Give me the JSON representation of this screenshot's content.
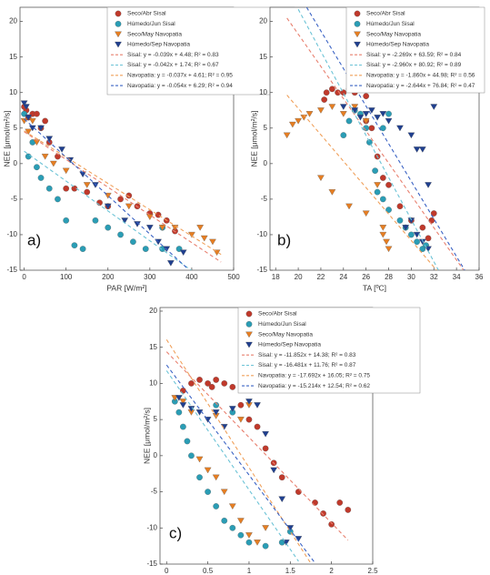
{
  "chart_data": [
    {
      "type": "scatter",
      "label": "a)",
      "xlabel": "PAR [W/m²]",
      "ylabel": "NEE [μmol/m²/s]",
      "xlim": [
        -10,
        500
      ],
      "ylim": [
        -15,
        22
      ],
      "xticks": [
        0,
        100,
        200,
        300,
        400,
        500
      ],
      "yticks": [
        -15,
        -10,
        -5,
        0,
        5,
        10,
        15,
        20
      ],
      "series": [
        {
          "name": "Seco/Abr Sisal",
          "color": "#c0392b",
          "marker": "o",
          "x": [
            0,
            5,
            10,
            20,
            30,
            40,
            50,
            60,
            80,
            100,
            120,
            150,
            180,
            200,
            230,
            250,
            270,
            300,
            320,
            340,
            360
          ],
          "y": [
            8,
            7.5,
            6.5,
            7,
            7,
            5,
            6,
            3,
            1,
            -3.5,
            -3.5,
            -4,
            -5.5,
            -6,
            -5,
            -4.5,
            -6,
            -7,
            -7.2,
            -8,
            -9.5
          ]
        },
        {
          "name": "Húmedo/Jun Sisal",
          "color": "#2a9db5",
          "marker": "o",
          "x": [
            0,
            10,
            20,
            30,
            40,
            60,
            80,
            100,
            120,
            140,
            170,
            200,
            230,
            260,
            290,
            330,
            370,
            330
          ],
          "y": [
            7,
            1,
            3,
            -0.5,
            -2,
            -3.5,
            -5,
            -8,
            -11.5,
            -12,
            -8,
            -9,
            -10,
            -11,
            -12,
            -12,
            -12,
            -9
          ]
        },
        {
          "name": "Seco/May Navopatia",
          "color": "#e67e22",
          "marker": "v",
          "x": [
            0,
            10,
            20,
            30,
            50,
            70,
            100,
            150,
            200,
            250,
            300,
            330,
            360,
            400,
            430,
            450,
            460,
            420
          ],
          "y": [
            6,
            4.5,
            6,
            3,
            1,
            0,
            -1,
            -3,
            -4.5,
            -6,
            -7.5,
            -9,
            -9,
            -10,
            -10.5,
            -11,
            -12.5,
            -9
          ]
        },
        {
          "name": "Húmedo/Sep Navopatia",
          "color": "#1f3f8f",
          "marker": "v",
          "x": [
            0,
            5,
            10,
            20,
            40,
            60,
            90,
            110,
            140,
            170,
            200,
            240,
            270,
            300,
            320,
            340,
            350,
            380
          ],
          "y": [
            8.5,
            8,
            6.5,
            5,
            5,
            3.5,
            2,
            0.5,
            -1.5,
            -3,
            -6,
            -8,
            -8.5,
            -9,
            -11,
            -12,
            -14,
            -12.5
          ]
        }
      ],
      "trendlines": [
        {
          "name": "Sisal: y = -0.039x + 4.48; R² = 0.83",
          "color": "#e8806f",
          "x": [
            0,
            470
          ],
          "y": [
            4.48,
            -13.85
          ]
        },
        {
          "name": "Sisal: y = -0.042x + 1.74; R² = 0.67",
          "color": "#6cc3d6",
          "x": [
            0,
            400
          ],
          "y": [
            1.74,
            -15.06
          ]
        },
        {
          "name": "Navopatia: y = -0.037x + 4.61; R² = 0.95",
          "color": "#f0a05a",
          "x": [
            0,
            470
          ],
          "y": [
            4.61,
            -12.78
          ]
        },
        {
          "name": "Navopatia: y = -0.054x + 6.29; R² = 0.94",
          "color": "#3b63c4",
          "x": [
            0,
            390
          ],
          "y": [
            6.29,
            -14.77
          ]
        }
      ]
    },
    {
      "type": "scatter",
      "label": "b)",
      "xlabel": "TA [ºC]",
      "ylabel": "NEE [μmol/m²/s]",
      "xlim": [
        17.5,
        36
      ],
      "ylim": [
        -15,
        22
      ],
      "xticks": [
        18,
        20,
        22,
        24,
        26,
        28,
        30,
        32,
        34,
        36
      ],
      "yticks": [
        -15,
        -10,
        -5,
        0,
        5,
        10,
        15,
        20
      ],
      "series": [
        {
          "name": "Seco/Abr Sisal",
          "color": "#c0392b",
          "marker": "o",
          "x": [
            22.3,
            22.5,
            23,
            23.5,
            24,
            24.5,
            25,
            25.5,
            26,
            26,
            26.5,
            27,
            27.5,
            28,
            29,
            30,
            31,
            31.5,
            32,
            31.8
          ],
          "y": [
            9,
            10,
            10.5,
            10,
            10,
            10.5,
            10,
            10.5,
            9.5,
            6,
            5,
            1,
            -2,
            -3,
            -6,
            -8,
            -9,
            -10.5,
            -7,
            -8
          ]
        },
        {
          "name": "Húmedo/Jun Sisal",
          "color": "#2a9db5",
          "marker": "o",
          "x": [
            24,
            24.5,
            25,
            25.5,
            26,
            26.3,
            26.8,
            27,
            27.5,
            28,
            29,
            29.5,
            30,
            30.5,
            31,
            31.3,
            28,
            27.5
          ],
          "y": [
            4,
            6,
            7.5,
            7,
            5,
            3,
            -1,
            -4,
            -5,
            -6.5,
            -8,
            -9,
            -10,
            -11,
            -12,
            -11.5,
            7,
            5
          ]
        },
        {
          "name": "Seco/May Navopatia",
          "color": "#e67e22",
          "marker": "v",
          "x": [
            19,
            19.5,
            20,
            20.5,
            21,
            22,
            23,
            24,
            25,
            26,
            22,
            23,
            24.5,
            26,
            27,
            27.5,
            27.8,
            28,
            27.5
          ],
          "y": [
            4,
            5.5,
            6,
            6.5,
            7,
            7.5,
            8,
            7,
            8,
            6,
            -2,
            -4,
            -6,
            -7,
            -3,
            -9,
            -11,
            -12,
            -10
          ]
        },
        {
          "name": "Húmedo/Sep Navopatia",
          "color": "#1f3f8f",
          "marker": "v",
          "x": [
            24,
            25,
            25.5,
            26,
            26.5,
            27,
            27.5,
            28,
            29,
            30,
            30.5,
            31,
            31.5,
            30,
            30.5,
            31,
            31.5,
            29.5,
            32
          ],
          "y": [
            8,
            7.5,
            6.5,
            7,
            7.5,
            6.5,
            7,
            6,
            5,
            4,
            2,
            2,
            -3,
            -8,
            -10,
            -11,
            -12,
            -9,
            8
          ]
        }
      ],
      "trendlines": [
        {
          "name": "Sisal: y = -2.269x + 63.59; R² = 0.84",
          "color": "#e8806f",
          "x": [
            19,
            34.6
          ],
          "y": [
            20.48,
            -14.92
          ]
        },
        {
          "name": "Sisal: y = -2.960x + 80.92; R² = 0.89",
          "color": "#6cc3d6",
          "x": [
            20,
            32.4
          ],
          "y": [
            21.72,
            -14.98
          ]
        },
        {
          "name": "Navopatia: y = -1.860x + 44.98; R² = 0.56",
          "color": "#f0a05a",
          "x": [
            19,
            32.3
          ],
          "y": [
            9.64,
            -15.1
          ]
        },
        {
          "name": "Navopatia: y = -2.644x + 76.84; R² = 0.47",
          "color": "#3b63c4",
          "x": [
            20.74,
            34.73
          ],
          "y": [
            22,
            -15
          ]
        }
      ]
    },
    {
      "type": "scatter",
      "label": "c)",
      "xlabel": "VPD [KPa]",
      "ylabel": "NEE [μmol/m²/s]",
      "xlim": [
        -0.08,
        2.5
      ],
      "ylim": [
        -15,
        20.5
      ],
      "xticks": [
        0,
        0.5,
        1,
        1.5,
        2,
        2.5
      ],
      "yticks": [
        -15,
        -10,
        -5,
        0,
        5,
        10,
        15,
        20
      ],
      "series": [
        {
          "name": "Seco/Abr Sisal",
          "color": "#c0392b",
          "marker": "o",
          "x": [
            0.2,
            0.3,
            0.4,
            0.5,
            0.55,
            0.6,
            0.7,
            0.8,
            0.9,
            1.0,
            1.1,
            1.2,
            1.3,
            1.4,
            1.6,
            1.8,
            1.9,
            2.0,
            2.1,
            2.2
          ],
          "y": [
            9,
            10,
            10.5,
            10,
            9.5,
            10.5,
            10,
            9.5,
            7,
            5,
            4,
            1,
            -1,
            -3,
            -5,
            -6.5,
            -8,
            -9.5,
            -6.5,
            -7.5
          ]
        },
        {
          "name": "Húmedo/Jun Sisal",
          "color": "#2a9db5",
          "marker": "o",
          "x": [
            0.1,
            0.15,
            0.2,
            0.25,
            0.3,
            0.4,
            0.5,
            0.6,
            0.7,
            0.8,
            0.9,
            1.0,
            1.2,
            1.4,
            1.5,
            0.6,
            0.8
          ],
          "y": [
            7.5,
            6,
            4,
            2,
            0,
            -3,
            -5,
            -7,
            -9,
            -10,
            -11,
            -12,
            -12.5,
            -12,
            -10.5,
            7,
            6
          ]
        },
        {
          "name": "Seco/May Navopatia",
          "color": "#e67e22",
          "marker": "v",
          "x": [
            0.1,
            0.2,
            0.3,
            0.4,
            0.5,
            0.6,
            0.7,
            0.8,
            0.9,
            1.0,
            1.1,
            1.2,
            0.9,
            1.0,
            0.6
          ],
          "y": [
            8,
            7.5,
            6,
            -0.5,
            -2,
            -3,
            -5,
            -7,
            -9,
            -11,
            -12,
            -10,
            5,
            7,
            5.5
          ]
        },
        {
          "name": "Húmedo/Sep Navopatia",
          "color": "#1f3f8f",
          "marker": "v",
          "x": [
            0.15,
            0.2,
            0.3,
            0.4,
            0.5,
            0.6,
            0.8,
            1.0,
            1.1,
            1.2,
            1.3,
            1.4,
            1.5,
            1.6,
            1.45,
            0.7
          ],
          "y": [
            8,
            7,
            6.5,
            6,
            5,
            6,
            6.5,
            7.5,
            7,
            3,
            -2,
            -6,
            -10,
            -11.5,
            -12,
            4
          ]
        }
      ],
      "trendlines": [
        {
          "name": "Sisal: y = -11.852x + 14.38; R² = 0.83",
          "color": "#e8806f",
          "x": [
            0,
            2.2
          ],
          "y": [
            14.38,
            -11.69
          ]
        },
        {
          "name": "Sisal: y = -16.481x + 11.76; R² = 0.87",
          "color": "#6cc3d6",
          "x": [
            0,
            1.6
          ],
          "y": [
            11.76,
            -14.61
          ]
        },
        {
          "name": "Navopatia: y = -17.692x + 16.05; R² = 0.75",
          "color": "#f0a05a",
          "x": [
            0,
            1.75
          ],
          "y": [
            16.05,
            -14.91
          ]
        },
        {
          "name": "Navopatia: y = -15.214x + 12.54; R² = 0.62",
          "color": "#3b63c4",
          "x": [
            0,
            1.8
          ],
          "y": [
            12.54,
            -14.85
          ]
        }
      ]
    }
  ]
}
